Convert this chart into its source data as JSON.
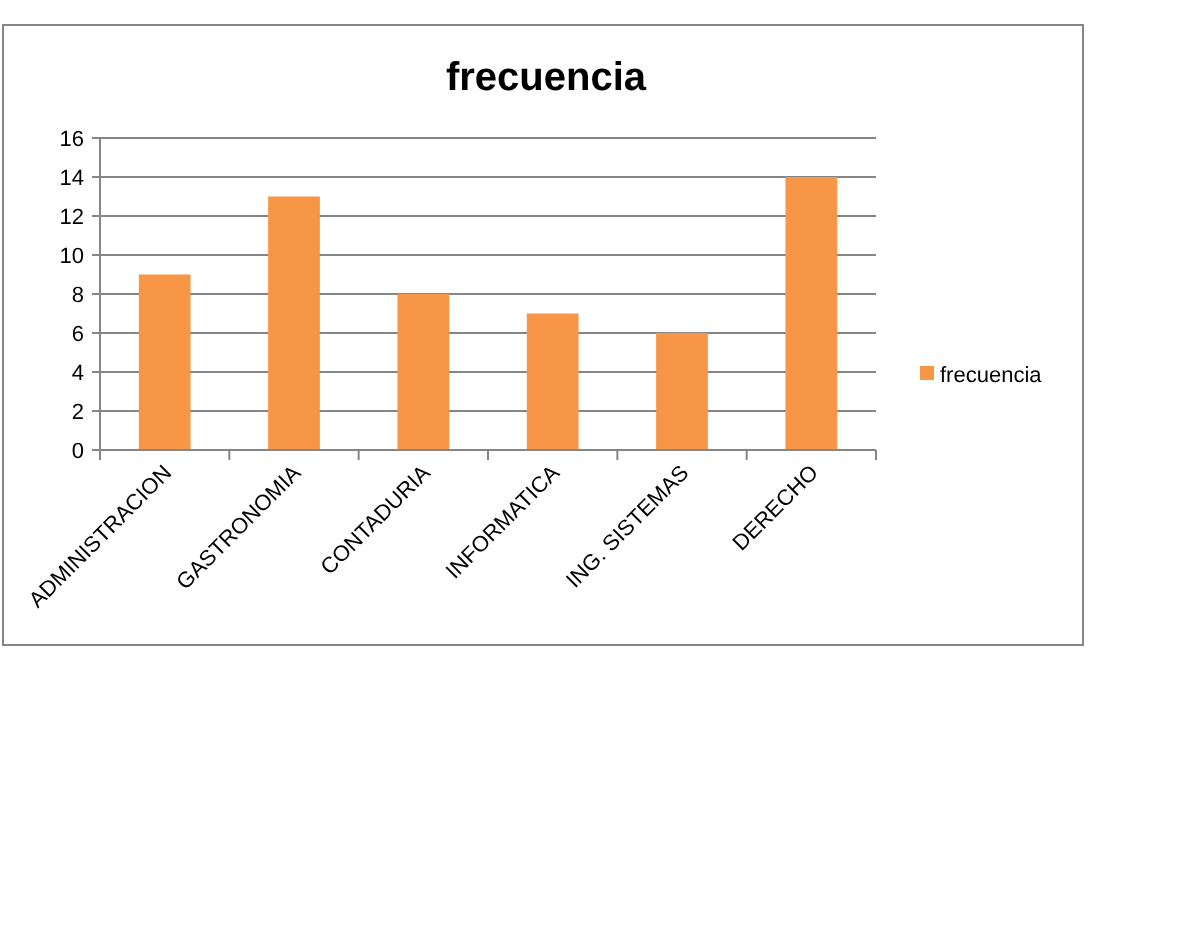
{
  "chart_data": {
    "type": "bar",
    "title": "frecuencia",
    "categories": [
      "ADMINISTRACION",
      "GASTRONOMIA",
      "CONTADURIA",
      "INFORMATICA",
      "ING. SISTEMAS",
      "DERECHO"
    ],
    "series": [
      {
        "name": "frecuencia",
        "color": "#f79646",
        "values": [
          9,
          13,
          8,
          7,
          6,
          14
        ]
      }
    ],
    "ylim": [
      0,
      16
    ],
    "yticks": [
      0,
      2,
      4,
      6,
      8,
      10,
      12,
      14,
      16
    ],
    "grid": "y",
    "legend": "right"
  }
}
